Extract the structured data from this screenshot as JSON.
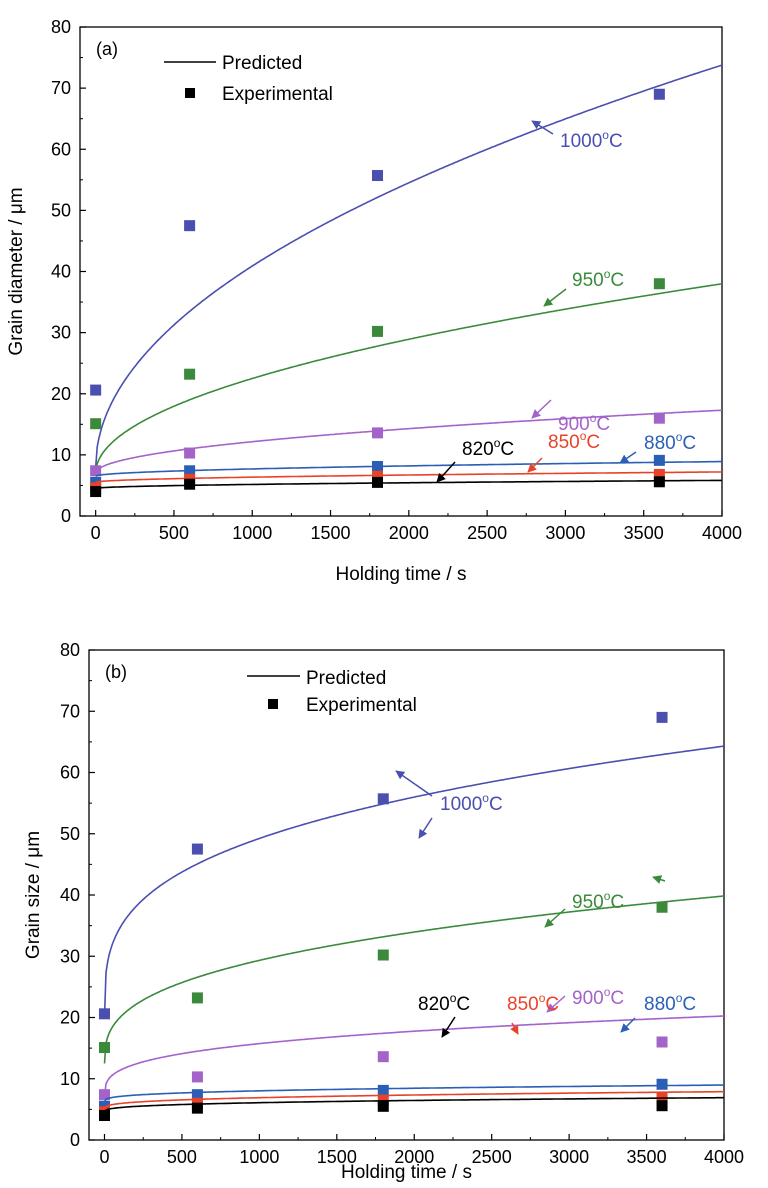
{
  "chart_data": [
    {
      "type": "line",
      "panel_label": "(a)",
      "xlabel": "Holding time / s",
      "ylabel": "Grain diameter / μm",
      "xlim": [
        -100,
        4000
      ],
      "ylim": [
        0,
        80
      ],
      "xticks": [
        0,
        500,
        1000,
        1500,
        2000,
        2500,
        3000,
        3500,
        4000
      ],
      "yticks": [
        0,
        10,
        20,
        30,
        40,
        50,
        60,
        70,
        80
      ],
      "legend": {
        "position": "top-left",
        "line_label": "Predicted",
        "marker_label": "Experimental"
      },
      "experimental_x": [
        0,
        600,
        1800,
        3600
      ],
      "series": [
        {
          "name": "1000°C",
          "annotation": {
            "value": "1000",
            "unit": "C",
            "sup": "o"
          },
          "color": "#4a4fb0",
          "predicted": {
            "a": 8.0,
            "b": 1.04,
            "n": 0.5
          },
          "experimental": [
            20.6,
            47.5,
            55.7,
            69.0
          ]
        },
        {
          "name": "950°C",
          "annotation": {
            "value": "950",
            "unit": "C",
            "sup": "o"
          },
          "color": "#3b8a3b",
          "predicted": {
            "a": 7.0,
            "b": 0.49,
            "n": 0.5
          },
          "experimental": [
            15.1,
            23.2,
            30.2,
            38.0
          ]
        },
        {
          "name": "900°C",
          "annotation": {
            "value": "900",
            "unit": "C",
            "sup": "o"
          },
          "color": "#a363c9",
          "predicted": {
            "a": 7.0,
            "b": 0.163,
            "n": 0.5
          },
          "experimental": [
            7.4,
            10.3,
            13.6,
            16.0
          ]
        },
        {
          "name": "880°C",
          "annotation": {
            "value": "880",
            "unit": "C",
            "sup": "o"
          },
          "color": "#2b5fb5",
          "predicted": {
            "a": 6.5,
            "b": 0.038,
            "n": 0.5
          },
          "experimental": [
            5.5,
            7.4,
            8.1,
            9.1
          ]
        },
        {
          "name": "850°C",
          "annotation": {
            "value": "850",
            "unit": "C",
            "sup": "o"
          },
          "color": "#e8432a",
          "predicted": {
            "a": 5.5,
            "b": 0.027,
            "n": 0.5
          },
          "experimental": [
            4.6,
            6.0,
            6.5,
            6.8
          ]
        },
        {
          "name": "820°C",
          "annotation": {
            "value": "820",
            "unit": "C",
            "sup": "o"
          },
          "color": "#000000",
          "predicted": {
            "a": 4.5,
            "b": 0.021,
            "n": 0.5
          },
          "experimental": [
            4.0,
            5.2,
            5.5,
            5.6
          ]
        }
      ]
    },
    {
      "type": "line",
      "panel_label": "(b)",
      "xlabel": "Holding time / s",
      "ylabel": "Grain size / μm",
      "xlim": [
        -100,
        4000
      ],
      "ylim": [
        0,
        80
      ],
      "xticks": [
        0,
        500,
        1000,
        1500,
        2000,
        2500,
        3000,
        3500,
        4000
      ],
      "yticks": [
        0,
        10,
        20,
        30,
        40,
        50,
        60,
        70,
        80
      ],
      "legend": {
        "position": "top-left",
        "line_label": "Predicted",
        "marker_label": "Experimental"
      },
      "experimental_x": [
        0,
        600,
        1800,
        3600
      ],
      "series": [
        {
          "name": "1000°C",
          "annotation": {
            "value": "1000",
            "unit": "C",
            "sup": "o"
          },
          "color": "#4a4fb0",
          "predicted": {
            "a": 20.0,
            "b": 3.68,
            "n": 0.3
          },
          "experimental": [
            20.6,
            47.5,
            55.7,
            69.0
          ]
        },
        {
          "name": "950°C",
          "annotation": {
            "value": "950",
            "unit": "C",
            "sup": "o"
          },
          "color": "#3b8a3b",
          "predicted": {
            "a": 12.5,
            "b": 1.5,
            "n": 0.35
          },
          "experimental": [
            15.1,
            23.2,
            30.2,
            38.0
          ]
        },
        {
          "name": "900°C",
          "annotation": {
            "value": "900",
            "unit": "C",
            "sup": "o"
          },
          "color": "#a363c9",
          "predicted": {
            "a": 7.0,
            "b": 1.1,
            "n": 0.3
          },
          "experimental": [
            7.4,
            10.3,
            13.6,
            16.0
          ]
        },
        {
          "name": "880°C",
          "annotation": {
            "value": "880",
            "unit": "C",
            "sup": "o"
          },
          "color": "#2b5fb5",
          "predicted": {
            "a": 6.2,
            "b": 0.23,
            "n": 0.3
          },
          "experimental": [
            5.5,
            7.4,
            8.1,
            9.1
          ]
        },
        {
          "name": "850°C",
          "annotation": {
            "value": "850",
            "unit": "C",
            "sup": "o"
          },
          "color": "#e8432a",
          "predicted": {
            "a": 5.0,
            "b": 0.24,
            "n": 0.3
          },
          "experimental": [
            4.6,
            6.0,
            6.5,
            6.8
          ]
        },
        {
          "name": "820°C",
          "annotation": {
            "value": "820",
            "unit": "C",
            "sup": "o"
          },
          "color": "#000000",
          "predicted": {
            "a": 4.5,
            "b": 0.2,
            "n": 0.3
          },
          "experimental": [
            4.0,
            5.2,
            5.5,
            5.6
          ]
        }
      ]
    }
  ]
}
